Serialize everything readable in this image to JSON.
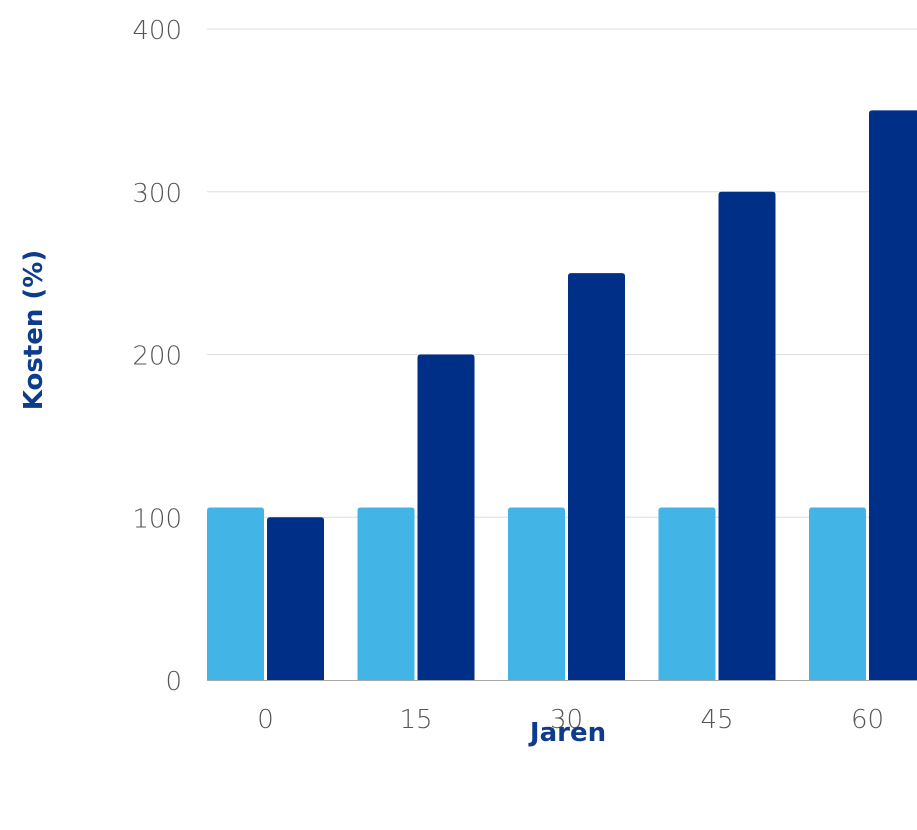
{
  "colors": {
    "series_light": "#42b5e6",
    "series_dark": "#002f87",
    "axis_title": "#0e3c8c",
    "gridline": "#dddddd",
    "baseline": "#aaaaaa",
    "tick_text": "#555555"
  },
  "chart_data": {
    "type": "bar",
    "title": "",
    "xlabel": "Jaren",
    "ylabel": "Kosten (%)",
    "categories": [
      "0",
      "15",
      "30",
      "45",
      "60"
    ],
    "ylim": [
      0,
      400
    ],
    "yticks": [
      0,
      100,
      200,
      300,
      400
    ],
    "grid": true,
    "legend": "none",
    "series": [
      {
        "color": "#42b5e6",
        "values": [
          106,
          106,
          106,
          106,
          106
        ]
      },
      {
        "color": "#002f87",
        "values": [
          100,
          200,
          250,
          300,
          350
        ]
      }
    ]
  }
}
